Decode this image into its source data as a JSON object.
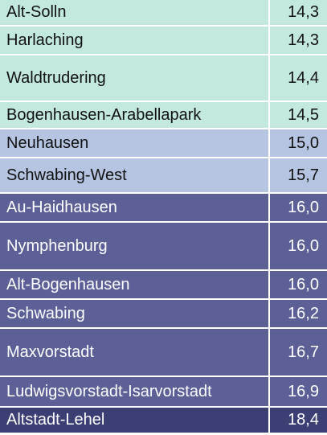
{
  "colors": {
    "tier_low_bg": "#c3e8e0",
    "tier_mid_bg": "#b5c4e0",
    "tier_high_bg": "#5c6096",
    "tier_top_bg": "#3c3f74",
    "dark_text": "#111111",
    "light_text": "#ffffff"
  },
  "rows": [
    {
      "district": "Alt-Solln",
      "value": "14,3",
      "tier": "low"
    },
    {
      "district": "Harlaching",
      "value": "14,3",
      "tier": "low"
    },
    {
      "district": "Waldtrudering",
      "value": "14,4",
      "tier": "low"
    },
    {
      "district": "Bogenhausen-Arabellapark",
      "value": "14,5",
      "tier": "low"
    },
    {
      "district": "Neuhausen",
      "value": "15,0",
      "tier": "mid"
    },
    {
      "district": "Schwabing-West",
      "value": "15,7",
      "tier": "mid"
    },
    {
      "district": "Au-Haidhausen",
      "value": "16,0",
      "tier": "high"
    },
    {
      "district": "Nymphenburg",
      "value": "16,0",
      "tier": "high"
    },
    {
      "district": "Alt-Bogenhausen",
      "value": "16,0",
      "tier": "high"
    },
    {
      "district": "Schwabing",
      "value": "16,2",
      "tier": "high"
    },
    {
      "district": "Maxvorstadt",
      "value": "16,7",
      "tier": "high"
    },
    {
      "district": "Ludwigsvorstadt-Isarvorstadt",
      "value": "16,9",
      "tier": "high"
    },
    {
      "district": "Altstadt-Lehel",
      "value": "18,4",
      "tier": "top"
    }
  ]
}
